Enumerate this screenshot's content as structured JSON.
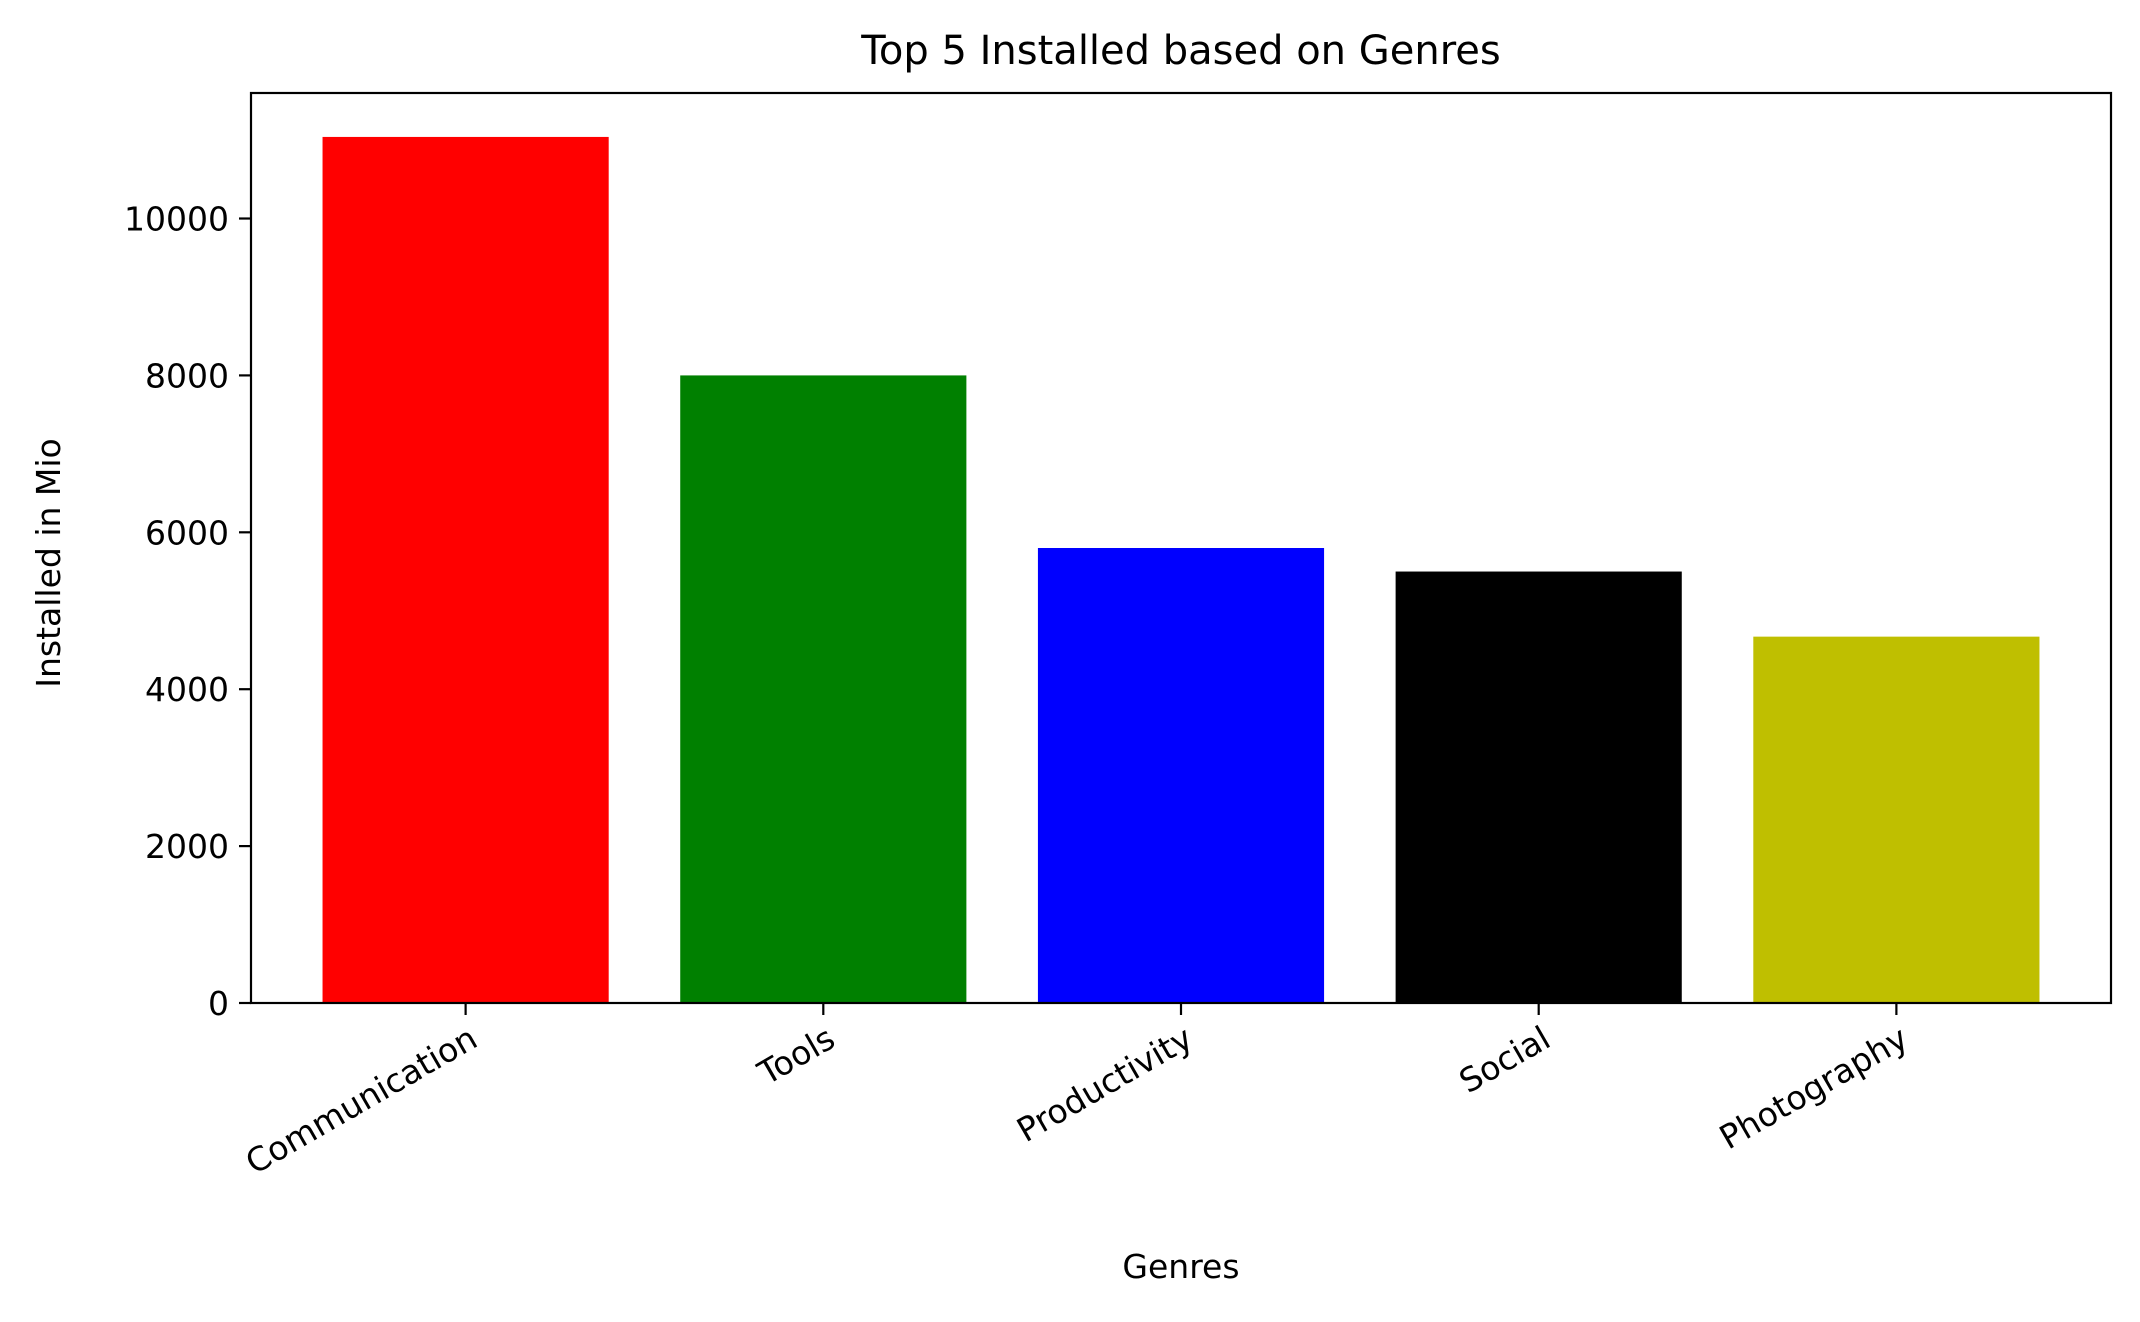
{
  "chart_data": {
    "type": "bar",
    "title": "Top 5 Installed based on Genres",
    "xlabel": "Genres",
    "ylabel": "Installed in Mio",
    "categories": [
      "Communication",
      "Tools",
      "Productivity",
      "Social",
      "Photography"
    ],
    "values": [
      11040,
      8000,
      5800,
      5500,
      4670
    ],
    "colors": [
      "#ff0000",
      "#008000",
      "#0000ff",
      "#000000",
      "#bfbf00"
    ],
    "yticks": [
      0,
      2000,
      4000,
      6000,
      8000,
      10000
    ],
    "ylim": [
      0,
      11600
    ],
    "grid": false,
    "legend": "none",
    "xtick_rotation": 30
  }
}
